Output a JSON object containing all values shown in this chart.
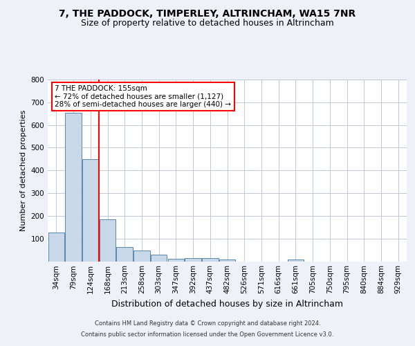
{
  "title1": "7, THE PADDOCK, TIMPERLEY, ALTRINCHAM, WA15 7NR",
  "title2": "Size of property relative to detached houses in Altrincham",
  "xlabel": "Distribution of detached houses by size in Altrincham",
  "ylabel": "Number of detached properties",
  "footnote1": "Contains HM Land Registry data © Crown copyright and database right 2024.",
  "footnote2": "Contains public sector information licensed under the Open Government Licence v3.0.",
  "bin_labels": [
    "34sqm",
    "79sqm",
    "124sqm",
    "168sqm",
    "213sqm",
    "258sqm",
    "303sqm",
    "347sqm",
    "392sqm",
    "437sqm",
    "482sqm",
    "526sqm",
    "571sqm",
    "616sqm",
    "661sqm",
    "705sqm",
    "750sqm",
    "795sqm",
    "840sqm",
    "884sqm",
    "929sqm"
  ],
  "bar_values": [
    127,
    655,
    450,
    183,
    62,
    48,
    28,
    11,
    15,
    15,
    9,
    0,
    0,
    0,
    8,
    0,
    0,
    0,
    0,
    0,
    0
  ],
  "bar_color": "#c8d8e8",
  "bar_edgecolor": "#5588aa",
  "vline_color": "red",
  "annotation_text": "7 THE PADDOCK: 155sqm\n← 72% of detached houses are smaller (1,127)\n28% of semi-detached houses are larger (440) →",
  "annotation_box_color": "white",
  "annotation_box_edgecolor": "red",
  "ylim": [
    0,
    800
  ],
  "yticks": [
    100,
    200,
    300,
    400,
    500,
    600,
    700,
    800
  ],
  "background_color": "#eef2f8",
  "plot_background": "white",
  "grid_color": "#c0c8d8",
  "title1_fontsize": 10,
  "title2_fontsize": 9,
  "xlabel_fontsize": 9,
  "ylabel_fontsize": 8,
  "tick_fontsize": 7.5,
  "annotation_fontsize": 7.5,
  "footnote_fontsize": 6
}
